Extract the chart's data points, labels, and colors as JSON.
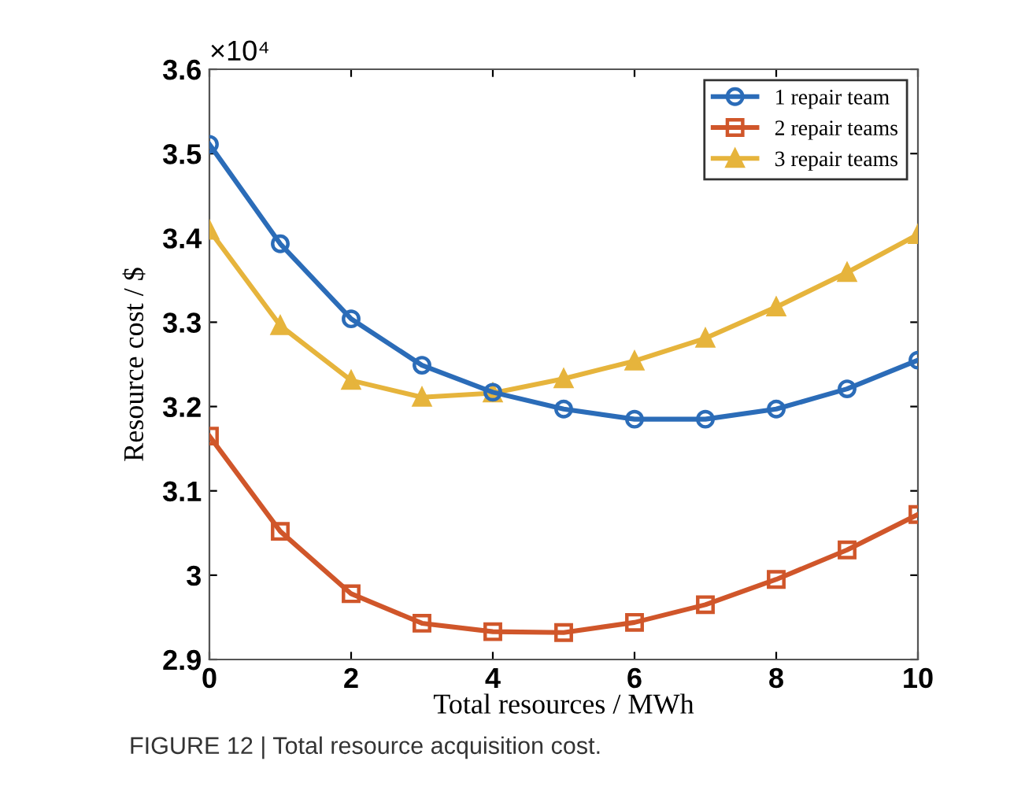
{
  "chart_data": {
    "type": "line",
    "xlabel": "Total resources / MWh",
    "ylabel": "Resource cost / $",
    "x": [
      0,
      1,
      2,
      3,
      4,
      5,
      6,
      7,
      8,
      9,
      10
    ],
    "series": [
      {
        "name": "1 repair team",
        "color": "#2b6cb8",
        "marker": "circle",
        "values": [
          3.511,
          3.393,
          3.304,
          3.249,
          3.217,
          3.197,
          3.185,
          3.185,
          3.197,
          3.221,
          3.255
        ]
      },
      {
        "name": "2 repair teams",
        "color": "#d0562a",
        "marker": "square",
        "values": [
          3.165,
          3.052,
          2.978,
          2.943,
          2.933,
          2.932,
          2.944,
          2.965,
          2.995,
          3.03,
          3.072
        ]
      },
      {
        "name": "3 repair teams",
        "color": "#e6b43c",
        "marker": "triangle",
        "values": [
          3.409,
          3.296,
          3.231,
          3.211,
          3.216,
          3.233,
          3.254,
          3.281,
          3.318,
          3.359,
          3.404
        ]
      }
    ],
    "xlim": [
      0,
      10
    ],
    "xticks": [
      0,
      2,
      4,
      6,
      8,
      10
    ],
    "ylim": [
      2.9,
      3.6
    ],
    "yticks": [
      2.9,
      3,
      3.1,
      3.2,
      3.3,
      3.4,
      3.5,
      3.6
    ],
    "grid": false,
    "legend": "top right",
    "line_style": "solid",
    "annotations": [
      "×10⁴",
      "FIGURE 12 | Total resource acquisition cost."
    ]
  }
}
